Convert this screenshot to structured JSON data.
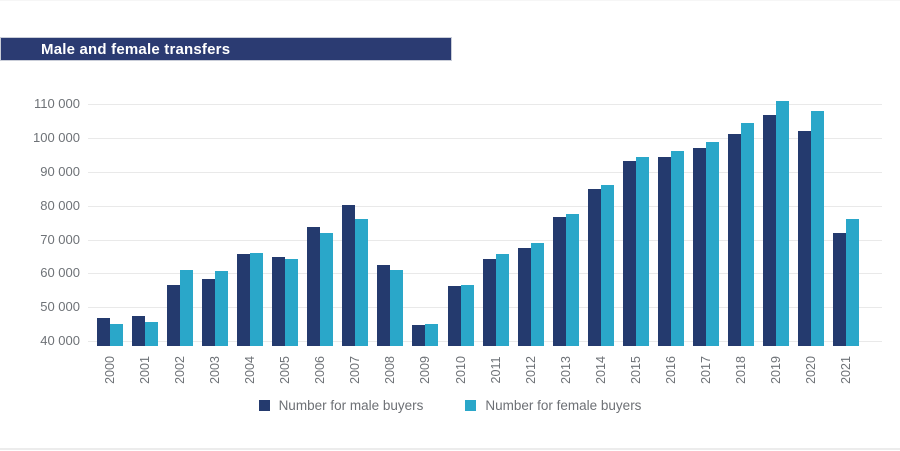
{
  "title": "Male and female transfers",
  "legend": {
    "male_label": "Number for male buyers",
    "female_label": "Number for female buyers"
  },
  "colors": {
    "male": "#243a6e",
    "female": "#2aa7c9",
    "banner": "#2b3b72",
    "axis_text": "#6e7277",
    "gridline": "#e9e9e9"
  },
  "chart_data": {
    "type": "bar",
    "title": "Male and female transfers",
    "categories": [
      "2000",
      "2001",
      "2002",
      "2003",
      "2004",
      "2005",
      "2006",
      "2007",
      "2008",
      "2009",
      "2010",
      "2011",
      "2012",
      "2013",
      "2014",
      "2015",
      "2016",
      "2017",
      "2018",
      "2019",
      "2020",
      "2021"
    ],
    "series": [
      {
        "name": "Number for male buyers",
        "color_key": "male",
        "values": [
          46800,
          47300,
          56700,
          58400,
          65700,
          64900,
          73700,
          80200,
          62500,
          44700,
          56300,
          64400,
          67600,
          76700,
          85100,
          93300,
          94500,
          97100,
          101300,
          106900,
          102100,
          71800
        ]
      },
      {
        "name": "Number for female buyers",
        "color_key": "female",
        "values": [
          45100,
          45500,
          60900,
          60700,
          66000,
          64300,
          71800,
          76000,
          61000,
          44900,
          56500,
          65700,
          69100,
          77500,
          86100,
          94400,
          96100,
          98900,
          104600,
          110900,
          107900,
          76200
        ]
      }
    ],
    "xlabel": "",
    "ylabel": "",
    "ylim": [
      38500,
      112500
    ],
    "yticks": [
      40000,
      50000,
      60000,
      70000,
      80000,
      90000,
      100000,
      110000
    ],
    "grid": true,
    "legend_position": "bottom"
  }
}
